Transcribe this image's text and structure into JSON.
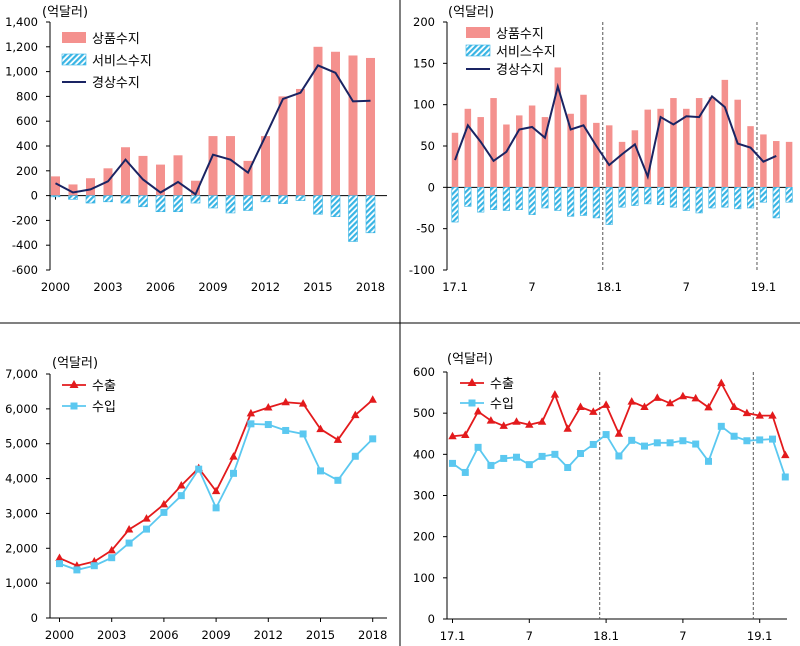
{
  "chart_data": [
    {
      "type": "bar+line",
      "unit_label": "(억달러)",
      "x_tick_labels": [
        "2000",
        "2003",
        "2006",
        "2009",
        "2012",
        "2015",
        "2018"
      ],
      "ylim": [
        -600,
        1400
      ],
      "y_ticks": [
        "-600",
        "-400",
        "-200",
        "0",
        "200",
        "400",
        "600",
        "800",
        "1,000",
        "1,200",
        "1,400"
      ],
      "legend": [
        "상품수지",
        "서비스수지",
        "경상수지"
      ],
      "colors": {
        "goods": "#f4918e",
        "services": "#38b4e4",
        "current": "#1a2463"
      },
      "categories": [
        "2000",
        "2001",
        "2002",
        "2003",
        "2004",
        "2005",
        "2006",
        "2007",
        "2008",
        "2009",
        "2010",
        "2011",
        "2012",
        "2013",
        "2014",
        "2015",
        "2016",
        "2017",
        "2018"
      ],
      "series": [
        {
          "name": "상품수지",
          "kind": "bar",
          "values": [
            155,
            90,
            140,
            220,
            390,
            320,
            250,
            325,
            120,
            480,
            480,
            280,
            480,
            800,
            860,
            1200,
            1160,
            1130,
            1110
          ]
        },
        {
          "name": "서비스수지",
          "kind": "bar",
          "values": [
            -10,
            -30,
            -60,
            -50,
            -60,
            -90,
            -130,
            -130,
            -60,
            -100,
            -140,
            -120,
            -50,
            -65,
            -40,
            -150,
            -170,
            -370,
            -300
          ]
        },
        {
          "name": "경상수지",
          "kind": "line",
          "values": [
            100,
            25,
            50,
            115,
            290,
            130,
            25,
            110,
            10,
            330,
            290,
            185,
            480,
            780,
            830,
            1050,
            990,
            760,
            765
          ]
        }
      ]
    },
    {
      "type": "bar+line",
      "unit_label": "(억달러)",
      "x_tick_labels": [
        "17.1",
        "7",
        "18.1",
        "7",
        "19.1"
      ],
      "ylim": [
        -100,
        200
      ],
      "y_ticks": [
        "-100",
        "-50",
        "0",
        "50",
        "100",
        "150",
        "200"
      ],
      "legend": [
        "상품수지",
        "서비스수지",
        "경상수지"
      ],
      "categories": [
        "17.1",
        "17.2",
        "17.3",
        "17.4",
        "17.5",
        "17.6",
        "17.7",
        "17.8",
        "17.9",
        "17.10",
        "17.11",
        "17.12",
        "18.1",
        "18.2",
        "18.3",
        "18.4",
        "18.5",
        "18.6",
        "18.7",
        "18.8",
        "18.9",
        "18.10",
        "18.11",
        "18.12",
        "19.1",
        "19.2",
        "19.3"
      ],
      "series": [
        {
          "name": "상품수지",
          "kind": "bar",
          "values": [
            66,
            95,
            85,
            108,
            76,
            87,
            99,
            85,
            145,
            89,
            112,
            78,
            75,
            55,
            69,
            94,
            95,
            108,
            95,
            108,
            109,
            130,
            106,
            74,
            64,
            56,
            55
          ]
        },
        {
          "name": "서비스수지",
          "kind": "bar",
          "values": [
            -42,
            -23,
            -30,
            -27,
            -28,
            -27,
            -33,
            -25,
            -28,
            -35,
            -34,
            -37,
            -45,
            -24,
            -22,
            -20,
            -21,
            -24,
            -28,
            -31,
            -25,
            -24,
            -26,
            -25,
            -18,
            -37,
            -18
          ]
        },
        {
          "name": "경상수지",
          "kind": "line",
          "values": [
            33,
            75,
            55,
            32,
            43,
            70,
            73,
            60,
            122,
            70,
            75,
            50,
            27,
            40,
            52,
            13,
            85,
            76,
            86,
            85,
            110,
            97,
            53,
            48,
            31,
            38,
            null
          ]
        }
      ],
      "dividers_at": [
        "18.1",
        "19.1"
      ]
    },
    {
      "type": "line",
      "unit_label": "(억달러)",
      "x_tick_labels": [
        "2000",
        "2003",
        "2006",
        "2009",
        "2012",
        "2015",
        "2018"
      ],
      "ylim": [
        0,
        7000
      ],
      "y_ticks": [
        "0",
        "1,000",
        "2,000",
        "3,000",
        "4,000",
        "5,000",
        "6,000",
        "7,000"
      ],
      "legend": [
        "수출",
        "수입"
      ],
      "colors": {
        "export": "#e31a1c",
        "import": "#5bc8f0"
      },
      "categories": [
        "2000",
        "2001",
        "2002",
        "2003",
        "2004",
        "2005",
        "2006",
        "2007",
        "2008",
        "2009",
        "2010",
        "2011",
        "2012",
        "2013",
        "2014",
        "2015",
        "2016",
        "2017",
        "2018"
      ],
      "series": [
        {
          "name": "수출",
          "values": [
            1720,
            1500,
            1620,
            1940,
            2540,
            2850,
            3260,
            3800,
            4300,
            3640,
            4630,
            5870,
            6040,
            6190,
            6150,
            5420,
            5110,
            5820,
            6260
          ]
        },
        {
          "name": "수입",
          "values": [
            1560,
            1380,
            1500,
            1730,
            2150,
            2550,
            3030,
            3510,
            4270,
            3160,
            4150,
            5570,
            5550,
            5380,
            5280,
            4220,
            3950,
            4640,
            5140
          ]
        }
      ]
    },
    {
      "type": "line",
      "unit_label": "(억달러)",
      "x_tick_labels": [
        "17.1",
        "7",
        "18.1",
        "7",
        "19.1"
      ],
      "ylim": [
        0,
        600
      ],
      "y_ticks": [
        "0",
        "100",
        "200",
        "300",
        "400",
        "500",
        "600"
      ],
      "legend": [
        "수출",
        "수입"
      ],
      "categories": [
        "17.1",
        "17.2",
        "17.3",
        "17.4",
        "17.5",
        "17.6",
        "17.7",
        "17.8",
        "17.9",
        "17.10",
        "17.11",
        "17.12",
        "18.1",
        "18.2",
        "18.3",
        "18.4",
        "18.5",
        "18.6",
        "18.7",
        "18.8",
        "18.9",
        "18.10",
        "18.11",
        "18.12",
        "19.1",
        "19.2",
        "19.3"
      ],
      "series": [
        {
          "name": "수출",
          "values": [
            444,
            447,
            504,
            482,
            469,
            479,
            472,
            479,
            545,
            462,
            515,
            503,
            520,
            450,
            528,
            515,
            537,
            524,
            541,
            536,
            514,
            573,
            515,
            500,
            494,
            494,
            398
          ]
        },
        {
          "name": "수입",
          "values": [
            378,
            356,
            417,
            373,
            390,
            393,
            375,
            395,
            400,
            368,
            402,
            424,
            448,
            396,
            434,
            420,
            428,
            428,
            433,
            425,
            383,
            468,
            444,
            433,
            435,
            437,
            345
          ]
        }
      ],
      "dividers_at": [
        "18.1",
        "19.1"
      ]
    }
  ]
}
